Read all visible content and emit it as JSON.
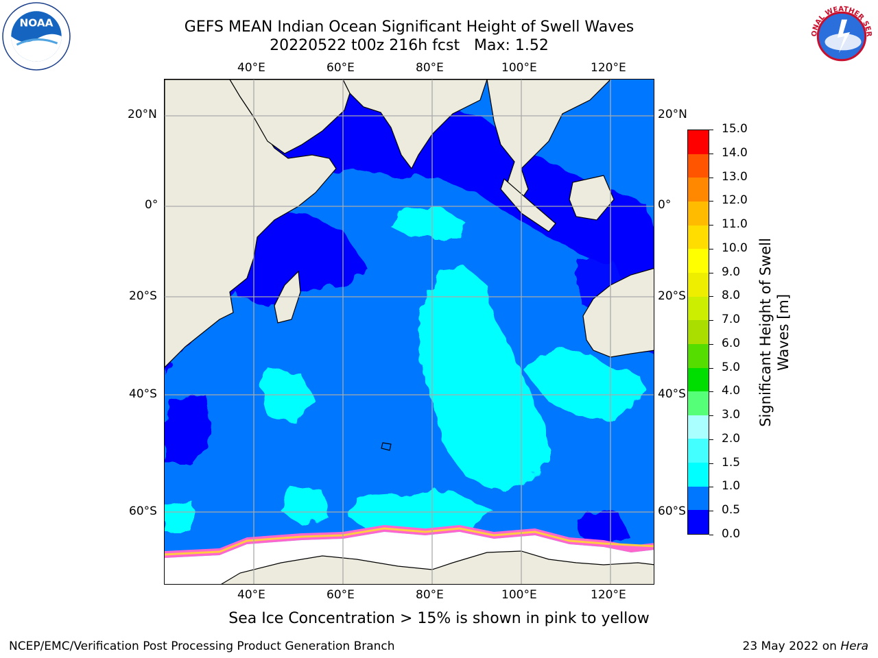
{
  "header": {
    "title_line1": "GEFS MEAN Indian Ocean Significant Height of Swell Waves",
    "title_line2": "20220522 t00z 216h fcst   Max: 1.52"
  },
  "logos": {
    "left": "NOAA",
    "right": "NATIONAL WEATHER SERVICE"
  },
  "map": {
    "region": "Indian Ocean",
    "lon_ticks": [
      "40°E",
      "60°E",
      "80°E",
      "100°E",
      "120°E"
    ],
    "lat_ticks": [
      "20°N",
      "0°",
      "20°S",
      "40°S",
      "60°S"
    ],
    "grid": true,
    "colors": {
      "land": "#ecebde",
      "sea_ice": "#ffffff",
      "ocean_base": "#0077ff"
    }
  },
  "chart_data": {
    "type": "heatmap",
    "title": "GEFS MEAN Indian Ocean Significant Height of Swell Waves",
    "max_value": 1.52,
    "colorbar": {
      "label_line1": "Significant Height of Swell",
      "label_line2": "Waves [m]",
      "levels": [
        "0.0",
        "0.5",
        "1.0",
        "1.5",
        "2.0",
        "3.0",
        "4.0",
        "5.0",
        "6.0",
        "7.0",
        "8.0",
        "9.0",
        "10.0",
        "11.0",
        "12.0",
        "13.0",
        "14.0",
        "15.0"
      ],
      "colors": [
        "#0000ff",
        "#0077ff",
        "#00ffff",
        "#44ffff",
        "#aaffff",
        "#55ff77",
        "#00dd00",
        "#55dd00",
        "#aadd00",
        "#ccee00",
        "#eeee00",
        "#ffff00",
        "#ffdd00",
        "#ffbb00",
        "#ff8800",
        "#ff5500",
        "#ff0000"
      ]
    }
  },
  "annotation": "Sea Ice Concentration > 15% is shown in pink to yellow",
  "footer": {
    "left": "NCEP/EMC/Verification Post Processing Product Generation Branch",
    "date": "23 May 2022 on",
    "host": "Hera"
  }
}
